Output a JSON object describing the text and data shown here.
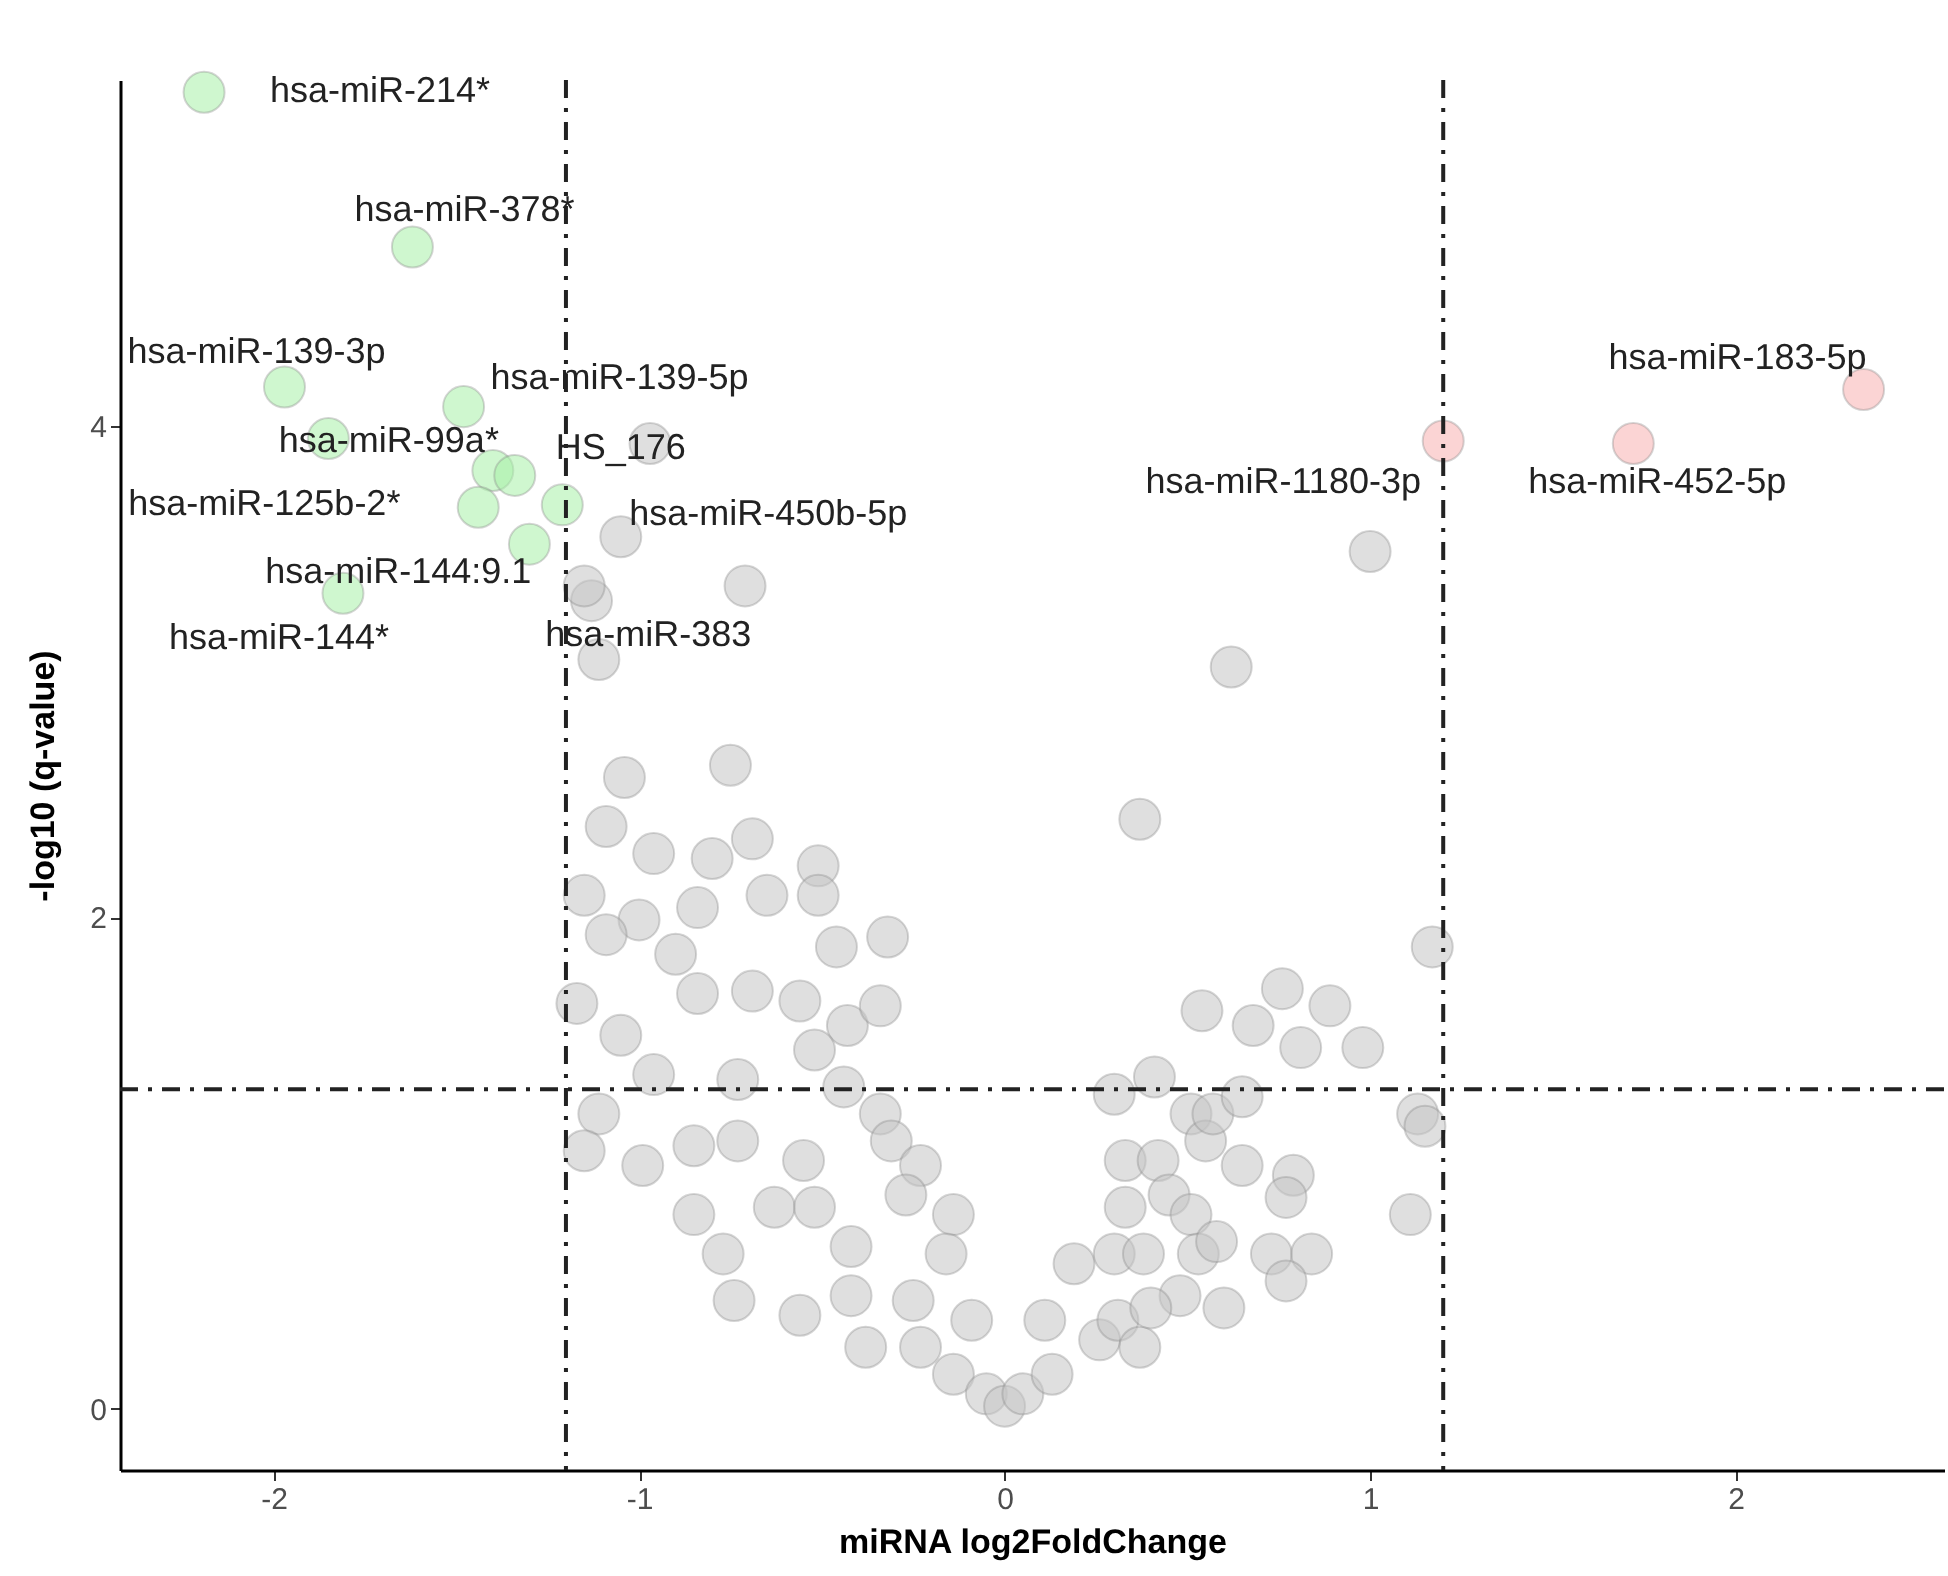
{
  "chart_data": {
    "type": "scatter",
    "xlabel": "miRNA log2FoldChange",
    "ylabel": "-log10 (q-value)",
    "xlim": [
      -2.42,
      2.57
    ],
    "ylim": [
      -0.25,
      5.41
    ],
    "xticks": [
      -2,
      -1,
      0,
      1,
      2
    ],
    "yticks": [
      0,
      2,
      4
    ],
    "grid": false,
    "marker": "circle",
    "series": [
      {
        "color": "#c4c4c4",
        "x": [
          -0.97,
          -1.05,
          -1.13,
          -1.11,
          -0.71,
          1.0,
          0.62,
          0.37,
          1.17,
          -1.15,
          -1.04,
          -0.75,
          -1.09,
          -0.96,
          -0.8,
          -0.69,
          -0.51,
          -1.15,
          -1.0,
          -0.84,
          -0.65,
          -0.51,
          -0.32,
          -0.46,
          -0.9,
          -1.09,
          -1.17,
          -1.05,
          -0.84,
          -0.69,
          -0.56,
          -0.43,
          -0.34,
          -0.52,
          -0.96,
          -0.73,
          -0.44,
          -1.11,
          -1.15,
          -0.99,
          -0.85,
          -0.73,
          -0.55,
          -0.34,
          -0.31,
          -0.23,
          -0.85,
          -0.63,
          -0.77,
          -0.52,
          -0.42,
          -0.27,
          -0.14,
          -0.74,
          -0.56,
          -0.42,
          -0.25,
          -0.16,
          -0.09,
          -0.38,
          -0.23,
          -0.14,
          -0.05,
          0.0,
          0.05,
          0.13,
          0.11,
          0.19,
          0.26,
          0.31,
          0.37,
          0.3,
          0.33,
          0.33,
          0.3,
          0.41,
          0.54,
          0.68,
          0.76,
          0.81,
          0.89,
          0.98,
          0.42,
          0.51,
          0.55,
          0.57,
          0.65,
          0.65,
          0.45,
          0.51,
          0.38,
          0.53,
          0.58,
          0.48,
          0.6,
          0.4,
          0.73,
          0.84,
          0.77,
          0.79,
          0.77,
          1.11,
          1.13,
          1.15
        ],
        "values": [
          3.93,
          3.55,
          3.29,
          3.05,
          3.35,
          3.49,
          3.02,
          2.4,
          1.88,
          3.35,
          2.57,
          2.62,
          2.37,
          2.26,
          2.24,
          2.32,
          2.21,
          2.09,
          1.99,
          2.04,
          2.09,
          2.09,
          1.92,
          1.88,
          1.85,
          1.93,
          1.65,
          1.52,
          1.69,
          1.7,
          1.66,
          1.56,
          1.64,
          1.46,
          1.36,
          1.34,
          1.31,
          1.2,
          1.05,
          0.99,
          1.07,
          1.09,
          1.01,
          1.2,
          1.09,
          0.99,
          0.79,
          0.82,
          0.63,
          0.82,
          0.66,
          0.87,
          0.79,
          0.44,
          0.38,
          0.46,
          0.44,
          0.63,
          0.36,
          0.25,
          0.25,
          0.14,
          0.06,
          0.01,
          0.06,
          0.14,
          0.36,
          0.59,
          0.28,
          0.36,
          0.25,
          0.63,
          0.82,
          1.01,
          1.28,
          1.35,
          1.62,
          1.56,
          1.71,
          1.47,
          1.64,
          1.47,
          1.01,
          1.2,
          1.09,
          1.2,
          1.27,
          0.99,
          0.87,
          0.79,
          0.63,
          0.63,
          0.68,
          0.46,
          0.41,
          0.41,
          0.63,
          0.63,
          0.52,
          0.95,
          0.86,
          0.79,
          1.2,
          1.15
        ]
      },
      {
        "color": "#a8f0a8",
        "x": [
          -2.19,
          -1.62,
          -1.97,
          -1.48,
          -1.85,
          -1.4,
          -1.34,
          -1.44,
          -1.21,
          -1.3,
          -1.81
        ],
        "values": [
          5.36,
          4.73,
          4.16,
          4.08,
          3.95,
          3.82,
          3.8,
          3.67,
          3.68,
          3.52,
          3.32
        ]
      },
      {
        "color": "#f7b0b0",
        "x": [
          1.2,
          1.72,
          2.35
        ],
        "values": [
          3.94,
          3.93,
          4.15
        ]
      }
    ],
    "ref_lines": [
      {
        "axis": "x",
        "value": -1.2
      },
      {
        "axis": "x",
        "value": 1.2
      },
      {
        "axis": "y",
        "value": 1.3
      }
    ],
    "annotations": [
      {
        "text": "hsa-miR-214*",
        "x": -2.19,
        "y": 5.36
      },
      {
        "text": "hsa-miR-378*",
        "x": -1.62,
        "y": 4.73
      },
      {
        "text": "hsa-miR-139-3p",
        "x": -1.97,
        "y": 4.16
      },
      {
        "text": "hsa-miR-139-5p",
        "x": -1.48,
        "y": 4.08
      },
      {
        "text": "hsa-miR-99a*",
        "x": -1.4,
        "y": 3.82
      },
      {
        "text": "HS_176",
        "x": -1.34,
        "y": 3.8
      },
      {
        "text": "hsa-miR-125b-2*",
        "x": -1.85,
        "y": 3.95
      },
      {
        "text": "hsa-miR-144:9.1",
        "x": -1.44,
        "y": 3.67
      },
      {
        "text": "hsa-miR-450b-5p",
        "x": -1.21,
        "y": 3.68
      },
      {
        "text": "hsa-miR-383",
        "x": -1.15,
        "y": 3.35
      },
      {
        "text": "hsa-miR-144*",
        "x": -1.81,
        "y": 3.32
      },
      {
        "text": "hsa-miR-1180-3p",
        "x": 1.2,
        "y": 3.94
      },
      {
        "text": "hsa-miR-452-5p",
        "x": 1.72,
        "y": 3.93
      },
      {
        "text": "hsa-miR-183-5p",
        "x": 2.35,
        "y": 4.15
      }
    ]
  }
}
